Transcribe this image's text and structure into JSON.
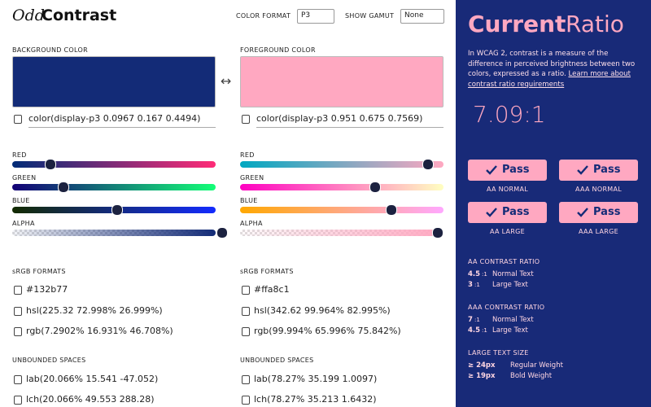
{
  "header": {
    "logo": [
      "Odd",
      "Contrast"
    ],
    "color_format": {
      "label": "COLOR FORMAT",
      "value": "P3"
    },
    "show_gamut": {
      "label": "SHOW GAMUT",
      "value": "None"
    }
  },
  "swap": "↔",
  "background": {
    "label": "BACKGROUND COLOR",
    "input": "color(display-p3 0.0967 0.167 0.4494)",
    "sliders": [
      "RED",
      "GREEN",
      "BLUE",
      "ALPHA"
    ],
    "srgb": {
      "label": "sRGB FORMATS",
      "values": [
        "#132b77",
        "hsl(225.32 72.998% 26.999%)",
        "rgb(7.2902% 16.931% 46.708%)"
      ]
    },
    "unbounded": {
      "label": "UNBOUNDED SPACES",
      "values": [
        "lab(20.066% 15.541 -47.052)",
        "lch(20.066% 49.553 288.28)"
      ]
    }
  },
  "foreground": {
    "label": "FOREGROUND COLOR",
    "input": "color(display-p3 0.951 0.675 0.7569)",
    "sliders": [
      "RED",
      "GREEN",
      "BLUE",
      "ALPHA"
    ],
    "srgb": {
      "label": "sRGB FORMATS",
      "values": [
        "#ffa8c1",
        "hsl(342.62 99.964% 82.995%)",
        "rgb(99.994% 65.996% 75.842%)"
      ]
    },
    "unbounded": {
      "label": "UNBOUNDED SPACES",
      "values": [
        "lab(78.27% 35.199 1.0097)",
        "lch(78.27% 35.213 1.6432)"
      ]
    }
  },
  "ratio_panel": {
    "title": [
      "Current",
      "Ratio"
    ],
    "description": "In WCAG 2, contrast is a measure of the difference in perceived brightness between two colors, expressed as a ratio.",
    "link": "Learn more about contrast ratio requirements",
    "ratio": "7.09:1",
    "checks": [
      {
        "result": "Pass",
        "label": "AA NORMAL"
      },
      {
        "result": "Pass",
        "label": "AAA NORMAL"
      },
      {
        "result": "Pass",
        "label": "AA LARGE"
      },
      {
        "result": "Pass",
        "label": "AAA LARGE"
      }
    ],
    "sections": [
      {
        "title": "AA CONTRAST RATIO",
        "rows": [
          {
            "key": "4.5",
            "unit": ":1",
            "text": "Normal Text"
          },
          {
            "key": "3",
            "unit": ":1",
            "text": "Large Text"
          }
        ]
      },
      {
        "title": "AAA CONTRAST RATIO",
        "rows": [
          {
            "key": "7",
            "unit": ":1",
            "text": "Normal Text"
          },
          {
            "key": "4.5",
            "unit": ":1",
            "text": "Large Text"
          }
        ]
      },
      {
        "title": "LARGE TEXT SIZE",
        "rows": [
          {
            "key": "≥ 24px",
            "text": "Regular Weight"
          },
          {
            "key": "≥ 19px",
            "text": "Bold Weight"
          }
        ]
      }
    ]
  }
}
